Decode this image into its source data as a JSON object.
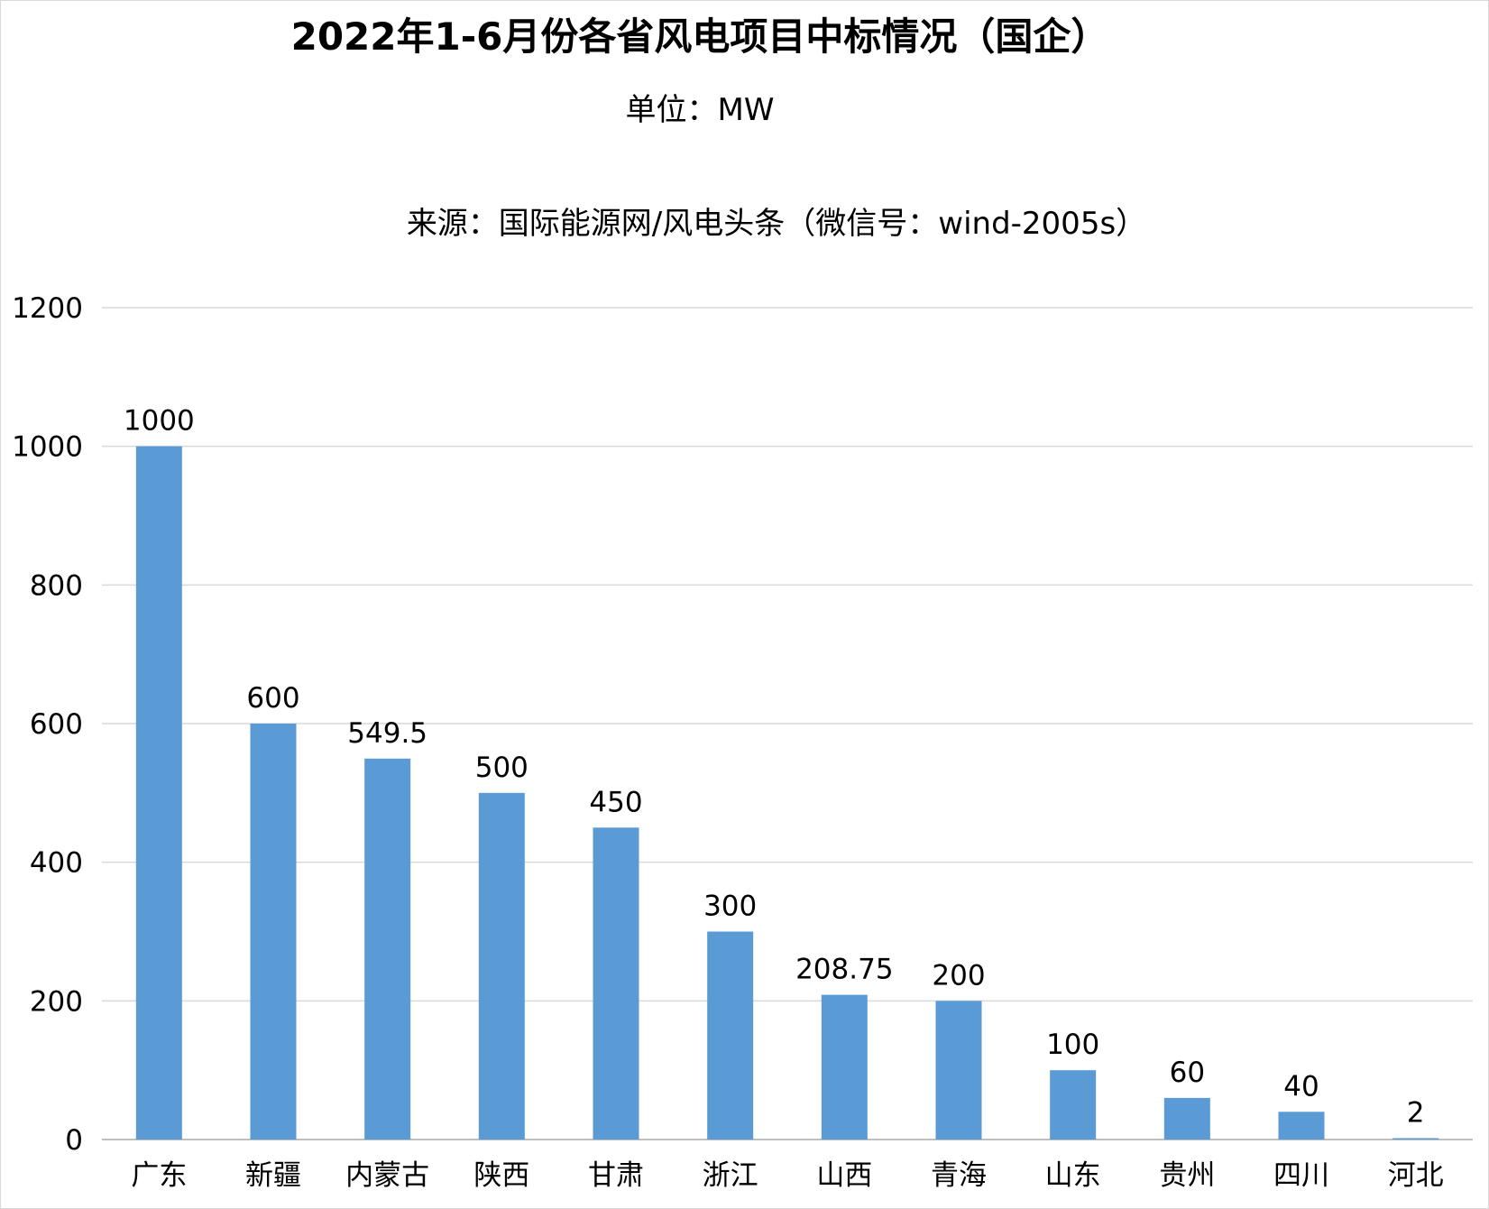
{
  "chart_data": {
    "type": "bar",
    "title": "2022年1-6月份各省风电项目中标情况（国企）",
    "subtitle": "单位：MW",
    "source": "来源：国际能源网/风电头条（微信号：wind-2005s）",
    "categories": [
      "广东",
      "新疆",
      "内蒙古",
      "陕西",
      "甘肃",
      "浙江",
      "山西",
      "青海",
      "山东",
      "贵州",
      "四川",
      "河北"
    ],
    "values": [
      1000,
      600,
      549.5,
      500,
      450,
      300,
      208.75,
      200,
      100,
      60,
      40,
      2
    ],
    "data_labels": [
      "1000",
      "600",
      "549.5",
      "500",
      "450",
      "300",
      "208.75",
      "200",
      "100",
      "60",
      "40",
      "2"
    ],
    "ylim": [
      0,
      1200
    ],
    "yticks": [
      "0",
      "200",
      "400",
      "600",
      "800",
      "1000",
      "1200"
    ],
    "xlabel": "",
    "ylabel": "",
    "grid": true,
    "legend": "none",
    "colors": {
      "bar": "#5b9bd5",
      "grid": "#d9d9d9",
      "axis": "#bfbfbf"
    }
  }
}
